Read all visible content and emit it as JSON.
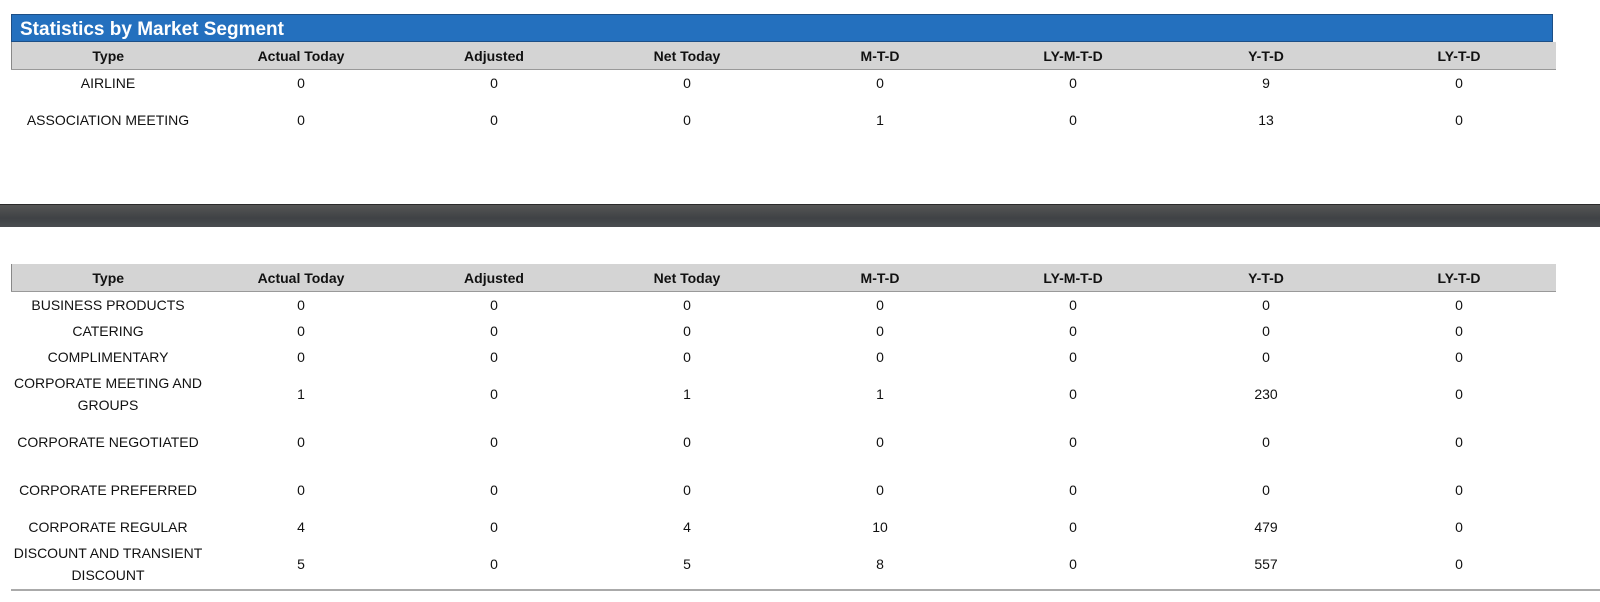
{
  "title": "Statistics by Market Segment",
  "columns": [
    "Type",
    "Actual Today",
    "Adjusted",
    "Net Today",
    "M-T-D",
    "LY-M-T-D",
    "Y-T-D",
    "LY-T-D"
  ],
  "table1": [
    {
      "type": "AIRLINE",
      "values": [
        "0",
        "0",
        "0",
        "0",
        "0",
        "9",
        "0"
      ]
    },
    {
      "type": "ASSOCIATION MEETING",
      "values": [
        "0",
        "0",
        "0",
        "1",
        "0",
        "13",
        "0"
      ]
    }
  ],
  "table2": [
    {
      "type": "BUSINESS PRODUCTS",
      "values": [
        "0",
        "0",
        "0",
        "0",
        "0",
        "0",
        "0"
      ]
    },
    {
      "type": "CATERING",
      "values": [
        "0",
        "0",
        "0",
        "0",
        "0",
        "0",
        "0"
      ]
    },
    {
      "type": "COMPLIMENTARY",
      "values": [
        "0",
        "0",
        "0",
        "0",
        "0",
        "0",
        "0"
      ]
    },
    {
      "type": "CORPORATE MEETING AND GROUPS",
      "values": [
        "1",
        "0",
        "1",
        "1",
        "0",
        "230",
        "0"
      ]
    },
    {
      "type": "CORPORATE NEGOTIATED",
      "values": [
        "0",
        "0",
        "0",
        "0",
        "0",
        "0",
        "0"
      ]
    },
    {
      "type": "CORPORATE PREFERRED",
      "values": [
        "0",
        "0",
        "0",
        "0",
        "0",
        "0",
        "0"
      ]
    },
    {
      "type": "CORPORATE REGULAR",
      "values": [
        "4",
        "0",
        "4",
        "10",
        "0",
        "479",
        "0"
      ]
    },
    {
      "type": "DISCOUNT AND TRANSIENT DISCOUNT",
      "values": [
        "5",
        "0",
        "5",
        "8",
        "0",
        "557",
        "0"
      ]
    }
  ],
  "colors": {
    "title_bar": "#2470be",
    "header": "#d4d4d4",
    "divider": "#444749"
  }
}
